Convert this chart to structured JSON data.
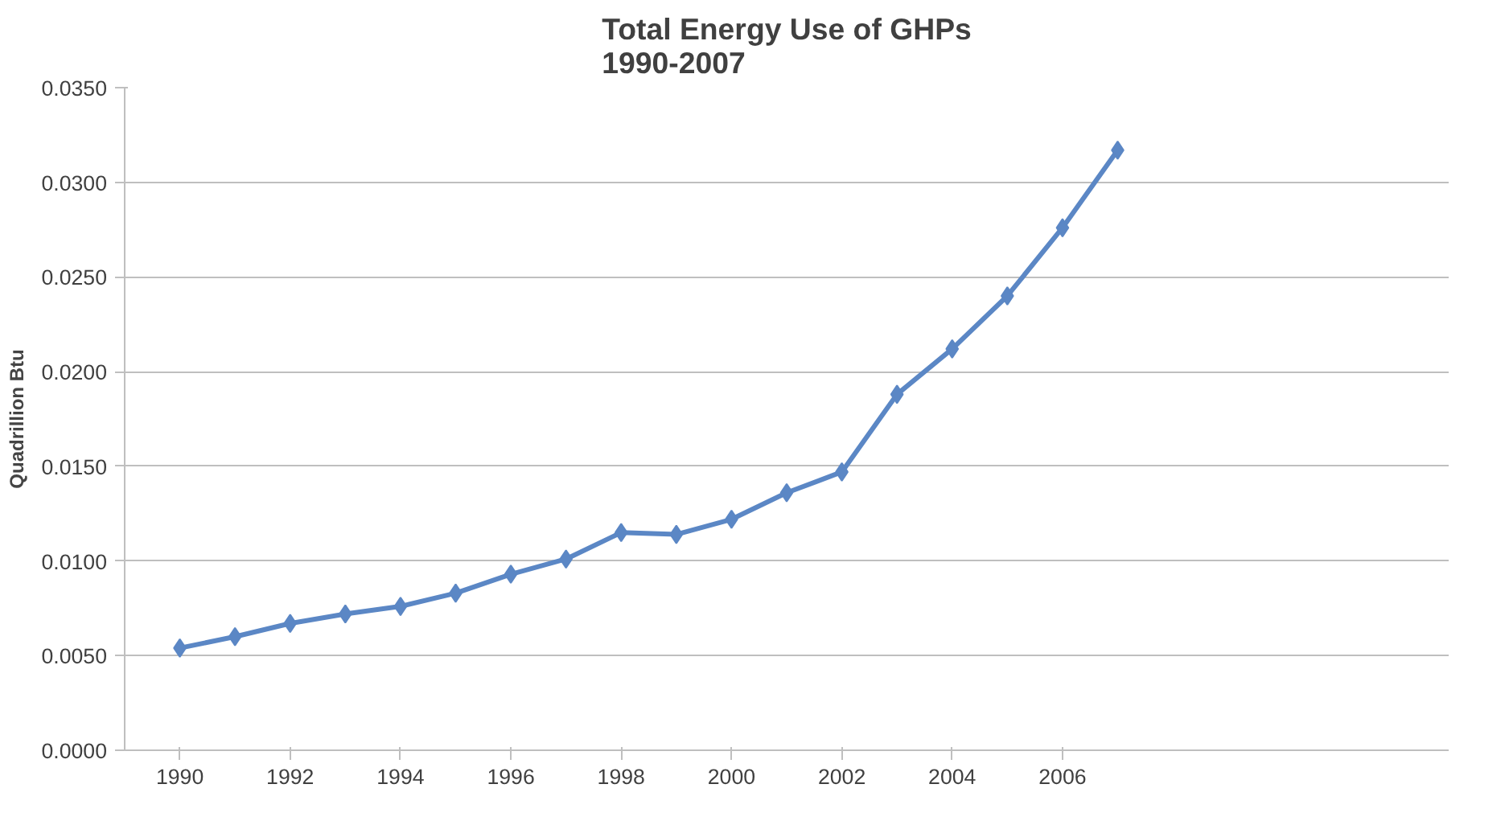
{
  "chart_data": {
    "type": "line",
    "title": "Total Energy Use of GHPs\n1990-2007",
    "ylabel": "Quadrillion Btu",
    "x": [
      1990,
      1991,
      1992,
      1993,
      1994,
      1995,
      1996,
      1997,
      1998,
      1999,
      2000,
      2001,
      2002,
      2003,
      2004,
      2005,
      2006,
      2007
    ],
    "series": [
      {
        "color": "#5b87c5",
        "values": [
          0.0054,
          0.006,
          0.0067,
          0.0072,
          0.0076,
          0.0083,
          0.0093,
          0.0101,
          0.0115,
          0.0114,
          0.0122,
          0.0136,
          0.0147,
          0.0188,
          0.0212,
          0.024,
          0.0276,
          0.0317
        ]
      }
    ],
    "xlim": [
      1989,
      2013
    ],
    "xticks": [
      1990,
      1992,
      1994,
      1996,
      1998,
      2000,
      2002,
      2004,
      2006
    ],
    "ylim": [
      0,
      0.035
    ],
    "yticks": [
      {
        "value": 0,
        "label": "0.0000"
      },
      {
        "value": 0.005,
        "label": "0.0050"
      },
      {
        "value": 0.01,
        "label": "0.0100"
      },
      {
        "value": 0.015,
        "label": "0.0150"
      },
      {
        "value": 0.02,
        "label": "0.0200"
      },
      {
        "value": 0.025,
        "label": "0.0250"
      },
      {
        "value": 0.03,
        "label": "0.0300"
      },
      {
        "value": 0.035,
        "label": "0.0350"
      }
    ],
    "grid": "y",
    "marker": "diamond",
    "line_style": "solid"
  }
}
